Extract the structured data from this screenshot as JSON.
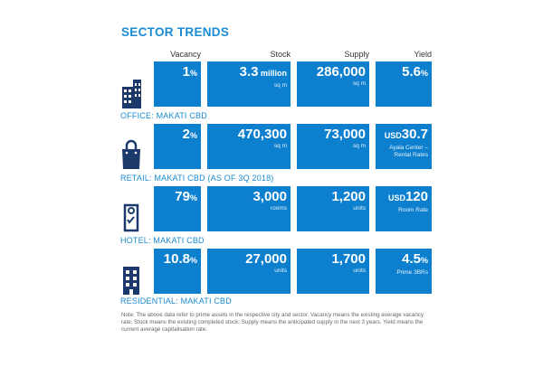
{
  "title": "SECTOR TRENDS",
  "columns": [
    "Vacancy",
    "Stock",
    "Supply",
    "Yield"
  ],
  "rows": [
    {
      "label": "OFFICE: MAKATI CBD",
      "icon": "office-building-icon",
      "vacancy": {
        "main": "1",
        "suffix": "%"
      },
      "stock": {
        "main": "3.3",
        "suffix": " million",
        "unit": "sq m"
      },
      "supply": {
        "main": "286,000",
        "unit": "sq m"
      },
      "yield": {
        "main": "5.6",
        "suffix": "%"
      }
    },
    {
      "label": "RETAIL: MAKATI CBD (AS OF 3Q 2018)",
      "icon": "shopping-bag-icon",
      "vacancy": {
        "main": "2",
        "suffix": "%"
      },
      "stock": {
        "main": "470,300",
        "unit": "sq m"
      },
      "supply": {
        "main": "73,000",
        "unit": "sq m"
      },
      "yield": {
        "prefix": "USD",
        "main": "30.7",
        "sub1": "Ayala Center –",
        "sub2": "Rental Rates"
      }
    },
    {
      "label": "HOTEL: MAKATI CBD",
      "icon": "door-hanger-icon",
      "vacancy": {
        "main": "79",
        "suffix": "%"
      },
      "stock": {
        "main": "3,000",
        "unit": "rooms"
      },
      "supply": {
        "main": "1,200",
        "unit": "units"
      },
      "yield": {
        "prefix": "USD",
        "main": "120",
        "sub1": "Room Rate"
      }
    },
    {
      "label": "RESIDENTIAL: MAKATI CBD",
      "icon": "residential-building-icon",
      "vacancy": {
        "main": "10.8",
        "suffix": "%"
      },
      "stock": {
        "main": "27,000",
        "unit": "units"
      },
      "supply": {
        "main": "1,700",
        "unit": "units"
      },
      "yield": {
        "main": "4.5",
        "suffix": "%",
        "sub1": "Prime 3BRs"
      }
    }
  ],
  "note": "Note: The above data refer to prime assets in the respective city and sector. Vacancy means the existing average vacancy rate; Stock means the existing completed stock; Supply means the anticipated supply in the next 3 years. Yield means the current average capitalisation rate.",
  "colors": {
    "accent": "#0c7fcf",
    "title": "#1a8bd2"
  }
}
